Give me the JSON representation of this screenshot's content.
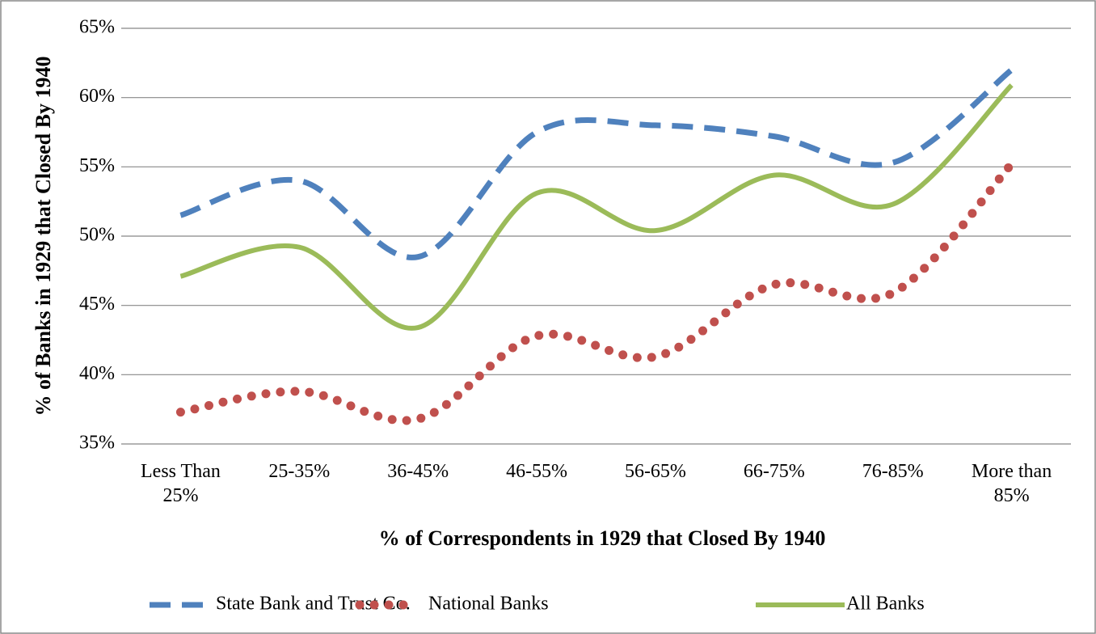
{
  "chart_data": {
    "type": "line",
    "x_label": "% of Correspondents in 1929 that Closed By 1940",
    "y_label": "% of Banks in 1929 that Closed By 1940",
    "categories": [
      "Less Than 25%",
      "25-35%",
      "36-45%",
      "46-55%",
      "56-65%",
      "66-75%",
      "76-85%",
      "More than 85%"
    ],
    "series": [
      {
        "name": "State Bank and Trust Co.",
        "color": "#4f81bd",
        "dash": "dashed",
        "values": [
          51.5,
          54.0,
          48.5,
          57.5,
          58.0,
          57.2,
          55.3,
          62.0
        ]
      },
      {
        "name": "National Banks",
        "color": "#c0504d",
        "dash": "dotted",
        "values": [
          37.3,
          38.8,
          36.8,
          42.8,
          41.3,
          46.5,
          45.9,
          55.2
        ]
      },
      {
        "name": "All Banks",
        "color": "#9bbb59",
        "dash": "solid",
        "values": [
          47.1,
          49.2,
          43.4,
          53.1,
          50.4,
          54.4,
          52.3,
          60.9
        ]
      }
    ],
    "ylim": [
      35,
      65
    ],
    "yticks": [
      {
        "value": 35,
        "label": "35%"
      },
      {
        "value": 40,
        "label": "40%"
      },
      {
        "value": 45,
        "label": "45%"
      },
      {
        "value": 50,
        "label": "50%"
      },
      {
        "value": 55,
        "label": "55%"
      },
      {
        "value": 60,
        "label": "60%"
      },
      {
        "value": 65,
        "label": "65%"
      }
    ],
    "grid": true,
    "smooth": true,
    "legend": "bottom"
  }
}
